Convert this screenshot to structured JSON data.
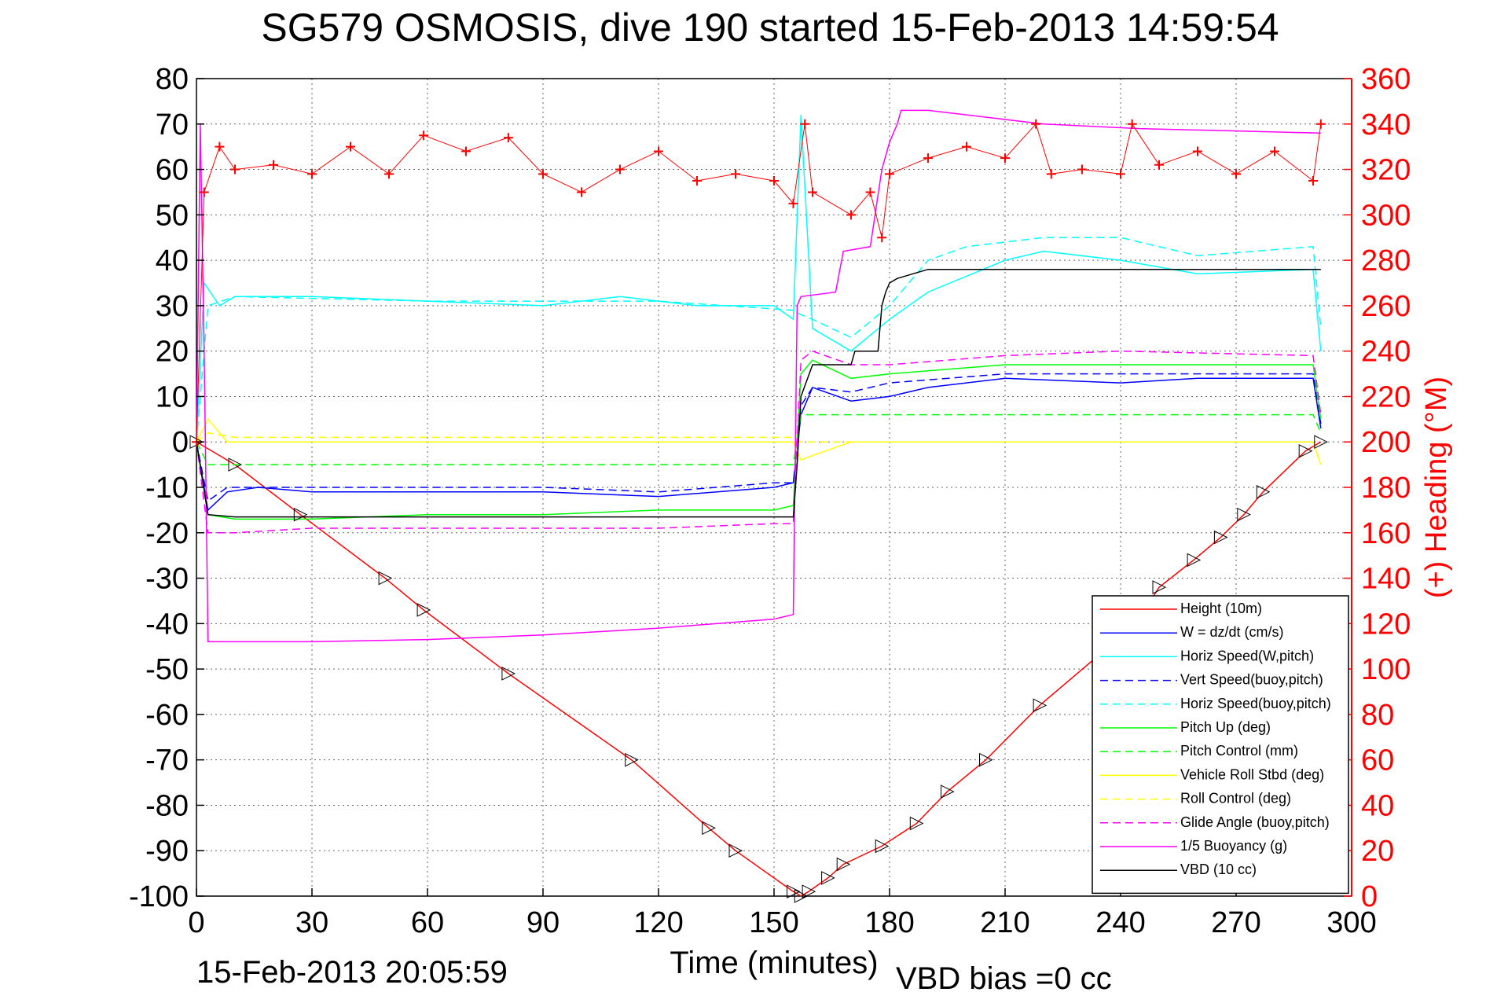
{
  "chart_data": {
    "type": "line",
    "title": "SG579 OSMOSIS, dive 190 started 15-Feb-2013 14:59:54",
    "xlabel": "Time (minutes)",
    "ylabel_right": "(+) Heading (°M)",
    "footer_left": "15-Feb-2013 20:05:59",
    "footer_right": "VBD bias =0 cc",
    "xlim": [
      0,
      300
    ],
    "ylim": [
      -100,
      80
    ],
    "ylim_right": [
      0,
      360
    ],
    "xticks": [
      0,
      30,
      60,
      90,
      120,
      150,
      180,
      210,
      240,
      270,
      300
    ],
    "yticks": [
      80,
      70,
      60,
      50,
      40,
      30,
      20,
      10,
      0,
      -10,
      -20,
      -30,
      -40,
      -50,
      -60,
      -70,
      -80,
      -90,
      -100
    ],
    "yticks_right": [
      360,
      340,
      320,
      300,
      280,
      260,
      240,
      220,
      200,
      180,
      160,
      140,
      120,
      100,
      80,
      60,
      40,
      20,
      0
    ],
    "grid": true,
    "legend_position": "bottom-right",
    "colors": {
      "height": "#ff0000",
      "w": "#0000ff",
      "horiz": "#00ffff",
      "pitch": "#00ff00",
      "roll": "#ffff00",
      "glide": "#ff00ff",
      "vbd": "#000000",
      "heading": "#ff0000"
    },
    "series": [
      {
        "name": "Height (10m)",
        "color": "#ff0000",
        "style": "solid",
        "x": [
          0,
          10,
          27,
          49,
          59,
          81,
          113,
          133,
          140,
          155,
          157,
          159,
          164,
          168,
          178,
          187,
          195,
          205,
          219,
          244,
          250,
          259,
          266,
          272,
          277,
          288,
          292
        ],
        "y": [
          0,
          -5,
          -16,
          -30,
          -37,
          -51,
          -70,
          -85,
          -90,
          -99,
          -100,
          -99,
          -96,
          -93,
          -89,
          -84,
          -77,
          -70,
          -58,
          -40,
          -32,
          -26,
          -21,
          -16,
          -11,
          -2,
          0
        ]
      },
      {
        "name": "W = dz/dt (cm/s)",
        "color": "#0000ff",
        "style": "solid",
        "x": [
          0,
          3,
          8,
          16,
          30,
          60,
          90,
          120,
          150,
          155,
          157,
          160,
          170,
          180,
          190,
          210,
          240,
          260,
          290,
          292
        ],
        "y": [
          0,
          -15,
          -11,
          -10,
          -11,
          -11,
          -11,
          -12,
          -10,
          -9,
          6,
          12,
          9,
          10,
          12,
          14,
          13,
          14,
          14,
          3
        ]
      },
      {
        "name": "Horiz Speed(W,pitch)",
        "color": "#00ffff",
        "style": "solid",
        "x": [
          0,
          2,
          6,
          10,
          30,
          60,
          90,
          110,
          130,
          150,
          155,
          157,
          160,
          170,
          180,
          190,
          210,
          220,
          240,
          260,
          290,
          292
        ],
        "y": [
          0,
          35,
          30,
          32,
          32,
          31,
          30,
          32,
          30,
          30,
          27,
          72,
          25,
          20,
          27,
          33,
          40,
          42,
          40,
          37,
          38,
          20
        ]
      },
      {
        "name": "Vert Speed(buoy,pitch)",
        "color": "#0000ff",
        "style": "dashed",
        "x": [
          0,
          3,
          8,
          30,
          60,
          90,
          120,
          150,
          155,
          157,
          160,
          170,
          180,
          210,
          240,
          290,
          292
        ],
        "y": [
          0,
          -13,
          -10,
          -10,
          -10,
          -10,
          -11,
          -9,
          -9,
          8,
          12,
          11,
          13,
          15,
          15,
          15,
          4
        ]
      },
      {
        "name": "Horiz Speed(buoy,pitch)",
        "color": "#00ffff",
        "style": "dashed",
        "x": [
          0,
          3,
          10,
          60,
          120,
          155,
          157,
          160,
          170,
          180,
          190,
          200,
          220,
          240,
          260,
          290,
          292
        ],
        "y": [
          0,
          30,
          32,
          31,
          31,
          29,
          28,
          27,
          23,
          30,
          40,
          43,
          45,
          45,
          41,
          43,
          25
        ]
      },
      {
        "name": "Pitch Up (deg)",
        "color": "#00ff00",
        "style": "solid",
        "x": [
          0,
          3,
          10,
          30,
          60,
          90,
          120,
          150,
          155,
          157,
          160,
          170,
          180,
          210,
          240,
          290,
          292
        ],
        "y": [
          0,
          -16,
          -17,
          -17,
          -16,
          -16,
          -15,
          -15,
          -14,
          15,
          18,
          14,
          15,
          17,
          17,
          17,
          5
        ]
      },
      {
        "name": "Pitch Control (mm)",
        "color": "#00ff00",
        "style": "dashed",
        "x": [
          0,
          3,
          10,
          60,
          90,
          110,
          130,
          155,
          157,
          160,
          180,
          210,
          240,
          260,
          290,
          292
        ],
        "y": [
          0,
          -5,
          -5,
          -5,
          -5,
          -5,
          -5,
          -5,
          6,
          6,
          6,
          6,
          6,
          6,
          6,
          2
        ]
      },
      {
        "name": "Vehicle Roll Stbd (deg)",
        "color": "#ffff00",
        "style": "solid",
        "x": [
          0,
          3,
          8,
          30,
          60,
          90,
          120,
          155,
          157,
          160,
          170,
          180,
          210,
          240,
          270,
          290,
          292
        ],
        "y": [
          0,
          5,
          0,
          0,
          0,
          0,
          0,
          0,
          -4,
          -3,
          0,
          0,
          0,
          0,
          0,
          0,
          -5
        ]
      },
      {
        "name": "Roll Control (deg)",
        "color": "#ffff00",
        "style": "dashed",
        "x": [
          0,
          3,
          10,
          60,
          120,
          155,
          157,
          170,
          180,
          210,
          240,
          270,
          290,
          292
        ],
        "y": [
          0,
          2,
          1,
          1,
          1,
          1,
          0,
          0,
          0,
          0,
          0,
          0,
          0,
          -5
        ]
      },
      {
        "name": "Glide Angle (buoy,pitch)",
        "color": "#ff00ff",
        "style": "dashed",
        "x": [
          0,
          3,
          10,
          30,
          60,
          90,
          120,
          150,
          155,
          157,
          160,
          170,
          180,
          210,
          240,
          290,
          292
        ],
        "y": [
          0,
          -20,
          -20,
          -19,
          -19,
          -19,
          -19,
          -18,
          -18,
          18,
          20,
          17,
          17,
          19,
          20,
          19,
          6
        ]
      },
      {
        "name": "1/5 Buoyancy (g)",
        "color": "#ff00ff",
        "style": "solid",
        "x": [
          0,
          1,
          2,
          3,
          30,
          60,
          90,
          120,
          150,
          155,
          156,
          157,
          166,
          168,
          175,
          178,
          180,
          182,
          183,
          190,
          220,
          245,
          292
        ],
        "y": [
          0,
          70,
          20,
          -44,
          -44,
          -43.5,
          -42.5,
          -41,
          -39,
          -38,
          30,
          32,
          33,
          42,
          43,
          60,
          66,
          70,
          73,
          73,
          70,
          69,
          68
        ]
      },
      {
        "name": "VBD (10 cc)",
        "color": "#000000",
        "style": "solid",
        "x": [
          0,
          3,
          10,
          30,
          60,
          90,
          120,
          150,
          155,
          156,
          157,
          160,
          170,
          171,
          177,
          178,
          179,
          180,
          182,
          190,
          220,
          245,
          292
        ],
        "y": [
          0,
          -16,
          -16.5,
          -16.5,
          -16.5,
          -16.5,
          -16.5,
          -16.5,
          -16.5,
          -5,
          10,
          17,
          17,
          20,
          20,
          30,
          33,
          35,
          36,
          38,
          38,
          38,
          38
        ]
      }
    ],
    "heading": {
      "name": "(+) Heading",
      "color": "#ff0000",
      "x": [
        0,
        2,
        6,
        10,
        20,
        30,
        40,
        50,
        59,
        70,
        81,
        90,
        100,
        110,
        120,
        130,
        140,
        150,
        155,
        158,
        160,
        170,
        175,
        178,
        180,
        190,
        200,
        210,
        218,
        222,
        230,
        240,
        243,
        250,
        260,
        270,
        280,
        290,
        292
      ],
      "y": [
        200,
        310,
        330,
        320,
        322,
        318,
        330,
        318,
        335,
        328,
        334,
        318,
        310,
        320,
        328,
        315,
        318,
        315,
        305,
        340,
        310,
        300,
        310,
        290,
        318,
        325,
        330,
        325,
        340,
        318,
        320,
        318,
        340,
        322,
        328,
        318,
        328,
        315,
        340
      ]
    }
  }
}
